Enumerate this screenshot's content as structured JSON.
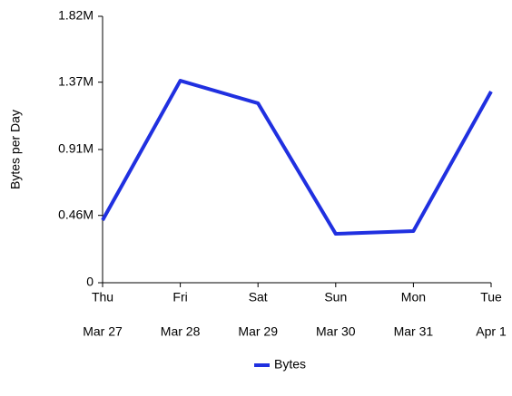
{
  "chart_data": {
    "type": "line",
    "y_label": "Bytes per Day",
    "categories": [
      [
        "Thu",
        "Mar 27"
      ],
      [
        "Fri",
        "Mar 28"
      ],
      [
        "Sat",
        "Mar 29"
      ],
      [
        "Sun",
        "Mar 30"
      ],
      [
        "Mon",
        "Mar 31"
      ],
      [
        "Tue",
        "Apr 1"
      ]
    ],
    "series": [
      {
        "name": "Bytes",
        "color": "#2030e0",
        "values": [
          427000,
          1380000,
          1226000,
          334000,
          353000,
          1306000
        ]
      }
    ],
    "ylim": [
      0,
      1820000
    ],
    "yticks": [
      0,
      {
        "value": 460000,
        "label": "0.46M"
      },
      {
        "value": 910000,
        "label": "0.91M"
      },
      {
        "value": 1370000,
        "label": "1.37M"
      },
      {
        "value": 1820000,
        "label": "1.82M"
      }
    ],
    "legend": "bottom"
  }
}
